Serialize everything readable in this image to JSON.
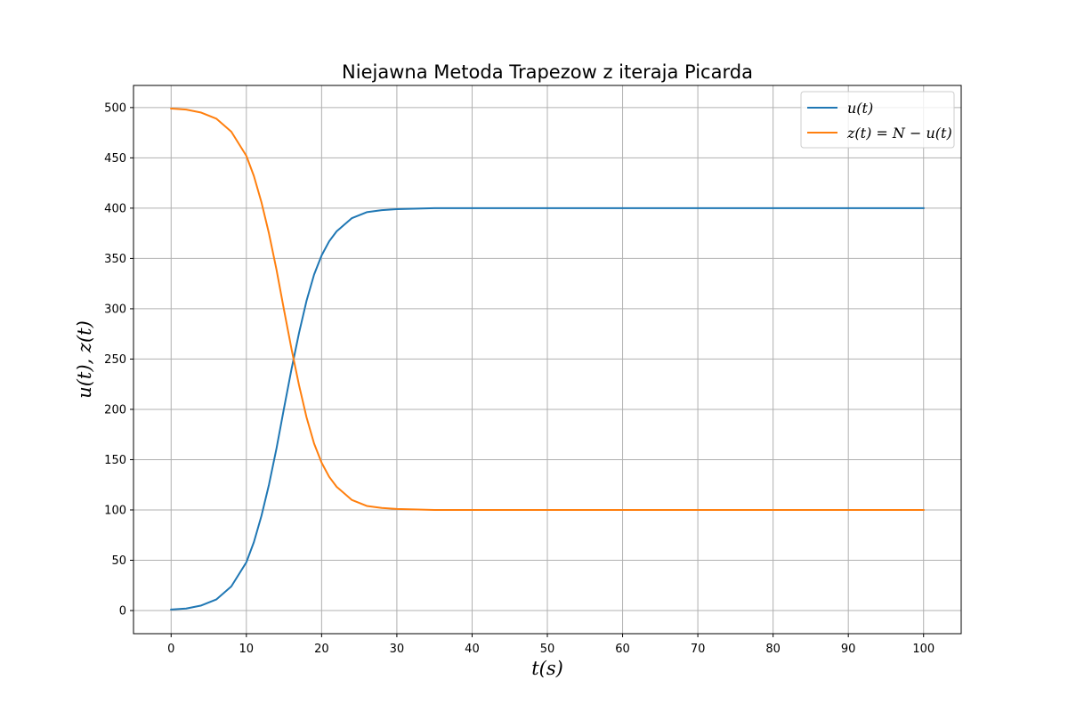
{
  "chart_data": {
    "type": "line",
    "title": "Niejawna Metoda Trapezow z iteraja Picarda",
    "xlabel": "t(s)",
    "ylabel": "u(t), z(t)",
    "xlim": [
      -5,
      105
    ],
    "ylim": [
      -23,
      522
    ],
    "xticks": [
      0,
      10,
      20,
      30,
      40,
      50,
      60,
      70,
      80,
      90,
      100
    ],
    "yticks": [
      0,
      50,
      100,
      150,
      200,
      250,
      300,
      350,
      400,
      450,
      500
    ],
    "grid": true,
    "legend_position": "top-right",
    "series": [
      {
        "name": "u(t)",
        "color": "#1f77b4",
        "x": [
          0,
          2,
          4,
          6,
          8,
          10,
          11,
          12,
          13,
          14,
          15,
          16,
          17,
          18,
          19,
          20,
          21,
          22,
          24,
          26,
          28,
          30,
          35,
          40,
          50,
          60,
          70,
          80,
          90,
          100
        ],
        "y": [
          1,
          2,
          5,
          11,
          24,
          48,
          68,
          94,
          125,
          161,
          201,
          240,
          276,
          308,
          334,
          353,
          367,
          377,
          390,
          396,
          398,
          399,
          400,
          400,
          400,
          400,
          400,
          400,
          400,
          400
        ]
      },
      {
        "name": "z(t) = N − u(t)",
        "color": "#ff7f0e",
        "x": [
          0,
          2,
          4,
          6,
          8,
          10,
          11,
          12,
          13,
          14,
          15,
          16,
          17,
          18,
          19,
          20,
          21,
          22,
          24,
          26,
          28,
          30,
          35,
          40,
          50,
          60,
          70,
          80,
          90,
          100
        ],
        "y": [
          499,
          498,
          495,
          489,
          476,
          452,
          432,
          406,
          375,
          339,
          299,
          260,
          224,
          192,
          166,
          147,
          133,
          123,
          110,
          104,
          102,
          101,
          100,
          100,
          100,
          100,
          100,
          100,
          100,
          100
        ]
      }
    ]
  }
}
